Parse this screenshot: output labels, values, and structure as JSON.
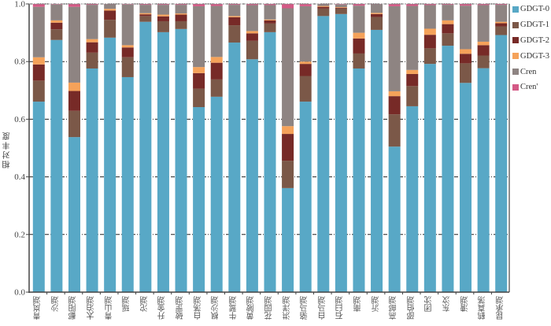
{
  "chart_data": {
    "type": "bar",
    "stacked": true,
    "title": "",
    "xlabel": "",
    "ylabel": "相对丰度",
    "ylim": [
      0,
      1.0
    ],
    "yticks": [
      "0.0",
      "0.2",
      "0.4",
      "0.6",
      "0.8",
      "1.0"
    ],
    "ytick_values": [
      0,
      0.2,
      0.4,
      0.6,
      0.8,
      1.0
    ],
    "grid": "horizontal dashed",
    "legend_position": "right",
    "categories": [
      "青岚湖",
      "沙湖",
      "鄱阳湖",
      "太泊湖",
      "青山湖",
      "瑶湖",
      "沱湖",
      "升金湖",
      "破罡湖",
      "白荡湖",
      "枫沙湖",
      "牛鹫湖",
      "黄陂湖",
      "花园湖",
      "洪洋湖",
      "骆马湖",
      "白马湖",
      "石臼湖",
      "南湖",
      "沂湖",
      "高邮湖",
      "邵伯湖",
      "团沈",
      "东汶",
      "漕湖",
      "鹤真荡",
      "昆承湖"
    ],
    "series": [
      {
        "name": "GDGT-0",
        "color": "#58a8c6",
        "values": [
          0.661,
          0.875,
          0.538,
          0.776,
          0.883,
          0.746,
          0.938,
          0.902,
          0.913,
          0.642,
          0.678,
          0.866,
          0.808,
          0.902,
          0.361,
          0.661,
          0.958,
          0.965,
          0.776,
          0.91,
          0.505,
          0.645,
          0.792,
          0.855,
          0.726,
          0.777,
          0.892
        ]
      },
      {
        "name": "GDGT-1",
        "color": "#7b5848",
        "values": [
          0.073,
          0.037,
          0.091,
          0.055,
          0.062,
          0.069,
          0.02,
          0.038,
          0.027,
          0.064,
          0.06,
          0.06,
          0.064,
          0.03,
          0.095,
          0.089,
          0.026,
          0.019,
          0.052,
          0.045,
          0.112,
          0.07,
          0.054,
          0.043,
          0.068,
          0.044,
          0.03
        ]
      },
      {
        "name": "GDGT-2",
        "color": "#772a27",
        "values": [
          0.056,
          0.023,
          0.069,
          0.036,
          0.032,
          0.034,
          0.006,
          0.017,
          0.023,
          0.054,
          0.058,
          0.028,
          0.026,
          0.011,
          0.093,
          0.042,
          0.006,
          0.003,
          0.052,
          0.01,
          0.063,
          0.042,
          0.047,
          0.032,
          0.033,
          0.036,
          0.011
        ]
      },
      {
        "name": "GDGT-3",
        "color": "#f5a25a",
        "values": [
          0.025,
          0.008,
          0.029,
          0.011,
          0.006,
          0.008,
          0.004,
          0.006,
          0.004,
          0.021,
          0.02,
          0.004,
          0.008,
          0.003,
          0.027,
          0.008,
          0.003,
          0.002,
          0.02,
          0.004,
          0.017,
          0.014,
          0.021,
          0.013,
          0.016,
          0.012,
          0.005
        ]
      },
      {
        "name": "Cren",
        "color": "#8e8482",
        "values": [
          0.175,
          0.055,
          0.263,
          0.119,
          0.016,
          0.141,
          0.029,
          0.034,
          0.03,
          0.211,
          0.177,
          0.039,
          0.09,
          0.05,
          0.409,
          0.192,
          0.006,
          0.009,
          0.094,
          0.03,
          0.295,
          0.222,
          0.082,
          0.054,
          0.151,
          0.127,
          0.059
        ]
      },
      {
        "name": "Cren'",
        "color": "#d45a86",
        "values": [
          0.01,
          0.002,
          0.01,
          0.003,
          0.001,
          0.002,
          0.003,
          0.003,
          0.003,
          0.008,
          0.007,
          0.003,
          0.004,
          0.004,
          0.015,
          0.008,
          0.001,
          0.002,
          0.006,
          0.001,
          0.008,
          0.007,
          0.004,
          0.003,
          0.006,
          0.004,
          0.003
        ]
      }
    ]
  }
}
